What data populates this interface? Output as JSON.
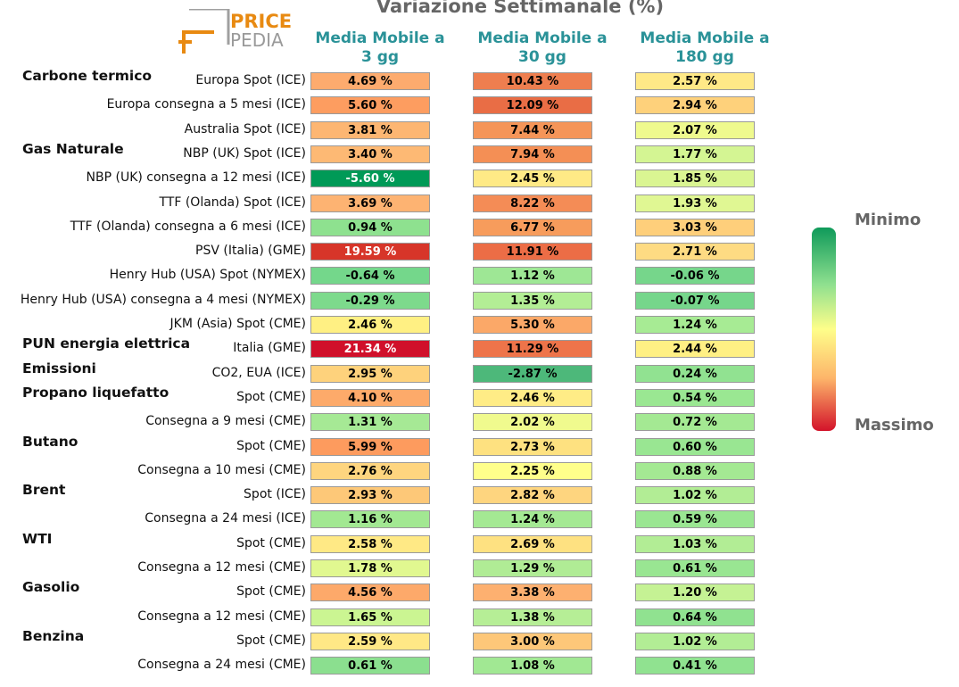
{
  "chart_data": {
    "type": "heatmap",
    "title": "Variazione Settimanale (%)",
    "columns": [
      "Media Mobile a 3 gg",
      "Media Mobile a 30 gg",
      "Media Mobile a 180 gg"
    ],
    "column_lines": [
      [
        "Media Mobile a",
        "3 gg"
      ],
      [
        "Media Mobile a",
        "30 gg"
      ],
      [
        "Media Mobile a",
        "180 gg"
      ]
    ],
    "value_suffix": " %",
    "rows": [
      {
        "group": "Carbone termico",
        "label": "Europa Spot (ICE)",
        "values": [
          4.69,
          10.43,
          2.57
        ]
      },
      {
        "group": "",
        "label": "Europa consegna a 5 mesi (ICE)",
        "values": [
          5.6,
          12.09,
          2.94
        ]
      },
      {
        "group": "",
        "label": "Australia Spot (ICE)",
        "values": [
          3.81,
          7.44,
          2.07
        ]
      },
      {
        "group": "Gas Naturale",
        "label": "NBP (UK) Spot (ICE)",
        "values": [
          3.4,
          7.94,
          1.77
        ]
      },
      {
        "group": "",
        "label": "NBP (UK) consegna a 12 mesi (ICE)",
        "values": [
          -5.6,
          2.45,
          1.85
        ]
      },
      {
        "group": "",
        "label": "TTF (Olanda) Spot (ICE)",
        "values": [
          3.69,
          8.22,
          1.93
        ]
      },
      {
        "group": "",
        "label": "TTF (Olanda) consegna a 6 mesi (ICE)",
        "values": [
          0.94,
          6.77,
          3.03
        ]
      },
      {
        "group": "",
        "label": "PSV (Italia) (GME)",
        "values": [
          19.59,
          11.91,
          2.71
        ]
      },
      {
        "group": "",
        "label": "Henry Hub (USA) Spot (NYMEX)",
        "values": [
          -0.64,
          1.12,
          -0.06
        ]
      },
      {
        "group": "",
        "label": "Henry Hub (USA) consegna a 4 mesi (NYMEX)",
        "values": [
          -0.29,
          1.35,
          -0.07
        ]
      },
      {
        "group": "",
        "label": "JKM (Asia) Spot (CME)",
        "values": [
          2.46,
          5.3,
          1.24
        ]
      },
      {
        "group": "PUN energia elettrica",
        "label": "Italia (GME)",
        "values": [
          21.34,
          11.29,
          2.44
        ]
      },
      {
        "group": "Emissioni",
        "label": "CO2, EUA (ICE)",
        "values": [
          2.95,
          -2.87,
          0.24
        ]
      },
      {
        "group": "Propano liquefatto",
        "label": "Spot (CME)",
        "values": [
          4.1,
          2.46,
          0.54
        ]
      },
      {
        "group": "",
        "label": "Consegna a 9 mesi (CME)",
        "values": [
          1.31,
          2.02,
          0.72
        ]
      },
      {
        "group": "Butano",
        "label": "Spot (CME)",
        "values": [
          5.99,
          2.73,
          0.6
        ]
      },
      {
        "group": "",
        "label": "Consegna a 10 mesi (CME)",
        "values": [
          2.76,
          2.25,
          0.88
        ]
      },
      {
        "group": "Brent",
        "label": "Spot (ICE)",
        "values": [
          2.93,
          2.82,
          1.02
        ]
      },
      {
        "group": "",
        "label": "Consegna a 24 mesi (ICE)",
        "values": [
          1.16,
          1.24,
          0.59
        ]
      },
      {
        "group": "WTI",
        "label": "Spot (CME)",
        "values": [
          2.58,
          2.69,
          1.03
        ]
      },
      {
        "group": "",
        "label": "Consegna a 12 mesi (CME)",
        "values": [
          1.78,
          1.29,
          0.61
        ]
      },
      {
        "group": "Gasolio",
        "label": "Spot (CME)",
        "values": [
          4.56,
          3.38,
          1.2
        ]
      },
      {
        "group": "",
        "label": "Consegna a 12 mesi (CME)",
        "values": [
          1.65,
          1.38,
          0.64
        ]
      },
      {
        "group": "Benzina",
        "label": "Spot (CME)",
        "values": [
          2.59,
          3.0,
          1.02
        ]
      },
      {
        "group": "",
        "label": "Consegna a 24 mesi (CME)",
        "values": [
          0.61,
          1.08,
          0.41
        ]
      }
    ],
    "colors": [
      [
        "#fdab6e",
        "#ee7e4f",
        "#ffe987"
      ],
      [
        "#fd9d60",
        "#e96d45",
        "#fed17b"
      ],
      [
        "#fdb672",
        "#f59558",
        "#effa8e"
      ],
      [
        "#fdb974",
        "#f48f55",
        "#d4f593"
      ],
      [
        "#009a57",
        "#ffea86",
        "#daf592"
      ],
      [
        "#fdb372",
        "#f48c56",
        "#e0f793"
      ],
      [
        "#8ee18f",
        "#f79c5c",
        "#fecf7b"
      ],
      [
        "#d73529",
        "#ec6d46",
        "#fedb83"
      ],
      [
        "#74d78b",
        "#9ee795",
        "#76d68b"
      ],
      [
        "#7dda8c",
        "#b3ee95",
        "#76d68b"
      ],
      [
        "#fff083",
        "#fba868",
        "#a7eb94"
      ],
      [
        "#d0102a",
        "#ee744a",
        "#fff084"
      ],
      [
        "#fed27c",
        "#4db87a",
        "#91e291"
      ],
      [
        "#fdaa6a",
        "#ffec86",
        "#9ae792"
      ],
      [
        "#a6e995",
        "#f0fa8e",
        "#a4e993"
      ],
      [
        "#fd9b5e",
        "#fee180",
        "#99e692"
      ],
      [
        "#fed57f",
        "#ffff8b",
        "#a4e993"
      ],
      [
        "#fdc878",
        "#fed57f",
        "#b2ed95"
      ],
      [
        "#a2e892",
        "#a4e993",
        "#9ae692"
      ],
      [
        "#ffe985",
        "#fee181",
        "#b2ed95"
      ],
      [
        "#e1f890",
        "#b0ec95",
        "#99e692"
      ],
      [
        "#fda96a",
        "#fdb070",
        "#c5f294"
      ],
      [
        "#cbf592",
        "#b6ee96",
        "#90e290"
      ],
      [
        "#ffe886",
        "#fdc779",
        "#b2ed95"
      ],
      [
        "#8bdf8f",
        "#a1e893",
        "#90e290"
      ]
    ],
    "legend": {
      "top": "Minimo",
      "bottom": "Massimo"
    }
  },
  "logo": {
    "line1": "PRICE",
    "line2": "PEDIA"
  }
}
